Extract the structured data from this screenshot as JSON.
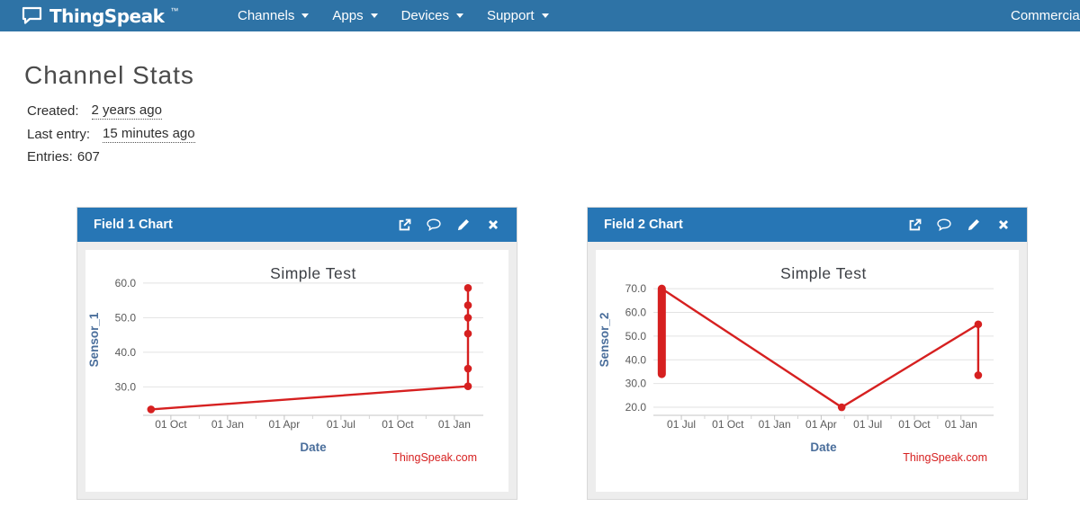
{
  "navbar": {
    "brand": "ThingSpeak",
    "brand_tm": "™",
    "items": [
      {
        "label": "Channels"
      },
      {
        "label": "Apps"
      },
      {
        "label": "Devices"
      },
      {
        "label": "Support"
      }
    ],
    "right_item": "Commercial Use"
  },
  "page": {
    "title": "Channel Stats",
    "created_label": "Created:",
    "created_value": "2 years ago",
    "last_entry_label": "Last entry:",
    "last_entry_value": "15 minutes ago",
    "entries_label": "Entries:",
    "entries_value": "607"
  },
  "panels": [
    {
      "title": "Field 1 Chart"
    },
    {
      "title": "Field 2 Chart"
    }
  ],
  "colors": {
    "navbar_bg": "#2e73a6",
    "panel_header_bg": "#2776b5",
    "chart_line": "#d62020",
    "axis_label_blue": "#4a6e9b",
    "watermark_red": "#d62020"
  },
  "chart_data": [
    {
      "type": "line",
      "title": "Simple Test",
      "xlabel": "Date",
      "ylabel": "Sensor_1",
      "watermark": "ThingSpeak.com",
      "line_color": "#d62020",
      "grid": true,
      "legend": "none",
      "y_ticks": [
        30,
        40,
        50,
        60
      ],
      "y_tick_labels": [
        "30.0",
        "40.0",
        "50.0",
        "60.0"
      ],
      "ylim": [
        21.8,
        61.8
      ],
      "x_tick_labels": [
        "01 Oct",
        "01 Jan",
        "01 Apr",
        "01 Jul",
        "01 Oct",
        "01 Jan"
      ],
      "xlim": [
        -0.49,
        5.51
      ],
      "points": [
        {
          "t": -0.35,
          "value": 23.5
        },
        {
          "t": 5.24,
          "value": 30.2
        },
        {
          "t": 5.24,
          "value": 35.3
        },
        {
          "t": 5.24,
          "value": 45.4
        },
        {
          "t": 5.24,
          "value": 50.0
        },
        {
          "t": 5.24,
          "value": 53.6
        },
        {
          "t": 5.24,
          "value": 58.6
        }
      ]
    },
    {
      "type": "line",
      "title": "Simple Test",
      "xlabel": "Date",
      "ylabel": "Sensor_2",
      "watermark": "ThingSpeak.com",
      "line_color": "#d62020",
      "grid": true,
      "legend": "none",
      "y_ticks": [
        20,
        30,
        40,
        50,
        60,
        70
      ],
      "y_tick_labels": [
        "20.0",
        "30.0",
        "40.0",
        "50.0",
        "60.0",
        "70.0"
      ],
      "ylim": [
        16.6,
        75.0
      ],
      "x_tick_labels": [
        "01 Jul",
        "01 Oct",
        "01 Jan",
        "01 Apr",
        "01 Jul",
        "01 Oct",
        "01 Jan"
      ],
      "xlim": [
        -0.6,
        6.7
      ],
      "cluster_segment": {
        "t": -0.42,
        "value_from": 34,
        "value_to": 70
      },
      "points": [
        {
          "t": -0.42,
          "value": 70
        },
        {
          "t": 3.44,
          "value": 20
        },
        {
          "t": 6.37,
          "value": 55
        },
        {
          "t": 6.37,
          "value": 33.5
        }
      ],
      "markers": [
        {
          "t": 3.44,
          "value": 20
        },
        {
          "t": 6.37,
          "value": 55
        },
        {
          "t": 6.37,
          "value": 33.5
        }
      ]
    }
  ]
}
